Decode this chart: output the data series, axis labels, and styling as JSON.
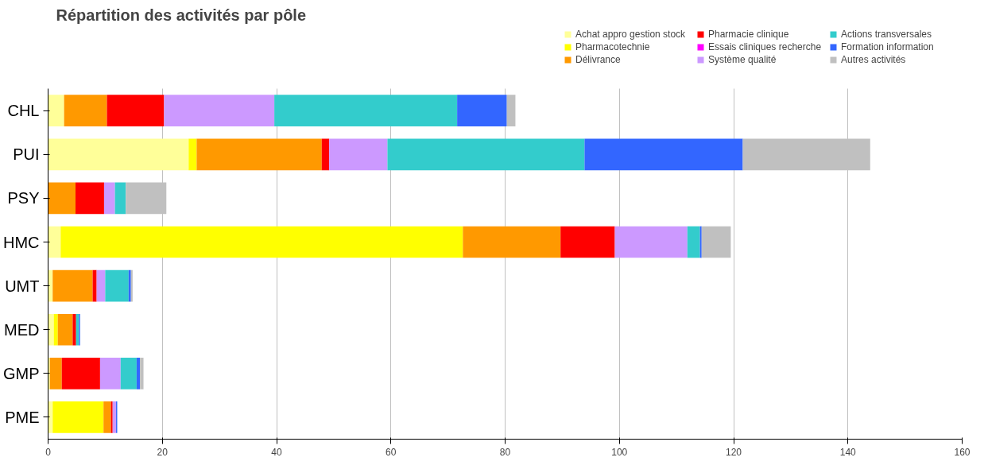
{
  "chart_data": {
    "type": "bar",
    "title": "Répartition des activités par pôle",
    "orientation": "horizontal",
    "stacked": true,
    "categories": [
      "CHL",
      "PUI",
      "PSY",
      "HMC",
      "UMT",
      "MED",
      "GMP",
      "PME"
    ],
    "series": [
      {
        "name": "Achat appro gestion stock",
        "color": "#ffff99",
        "values": [
          2.8,
          24.6,
          0,
          2.2,
          0.8,
          1.0,
          0.3,
          0.8
        ]
      },
      {
        "name": "Pharmacotechnie",
        "color": "#ffff00",
        "values": [
          0,
          1.4,
          0,
          70.4,
          0,
          0.7,
          0,
          8.9
        ]
      },
      {
        "name": "Délivrance",
        "color": "#ff9900",
        "values": [
          7.5,
          21.9,
          4.8,
          17.1,
          7.0,
          2.6,
          2.1,
          1.3
        ]
      },
      {
        "name": "Pharmacie clinique",
        "color": "#ff0000",
        "values": [
          10.0,
          1.3,
          5.0,
          9.5,
          0.7,
          0.6,
          6.7,
          0.3
        ]
      },
      {
        "name": "Essais cliniques recherche",
        "color": "#ff00ff",
        "values": [
          0,
          0,
          0,
          0,
          0,
          0,
          0,
          0
        ]
      },
      {
        "name": "Système qualité",
        "color": "#cc99ff",
        "values": [
          19.3,
          10.2,
          1.9,
          12.7,
          1.5,
          0,
          3.6,
          0.6
        ]
      },
      {
        "name": "Actions transversales",
        "color": "#33cccc",
        "values": [
          32.0,
          34.5,
          1.9,
          2.2,
          4.1,
          0.5,
          2.8,
          0
        ]
      },
      {
        "name": "Formation information",
        "color": "#3366ff",
        "values": [
          8.7,
          27.7,
          0,
          0.3,
          0.4,
          0.2,
          0.6,
          0.2
        ]
      },
      {
        "name": "Autres activités",
        "color": "#c0c0c0",
        "values": [
          1.5,
          22.3,
          7.1,
          5.1,
          0.3,
          0,
          0.6,
          0
        ]
      }
    ],
    "xlim": [
      0,
      160
    ],
    "xticks": [
      0,
      20,
      40,
      60,
      80,
      100,
      120,
      140,
      160
    ],
    "grid": "x",
    "legend": "top right"
  }
}
